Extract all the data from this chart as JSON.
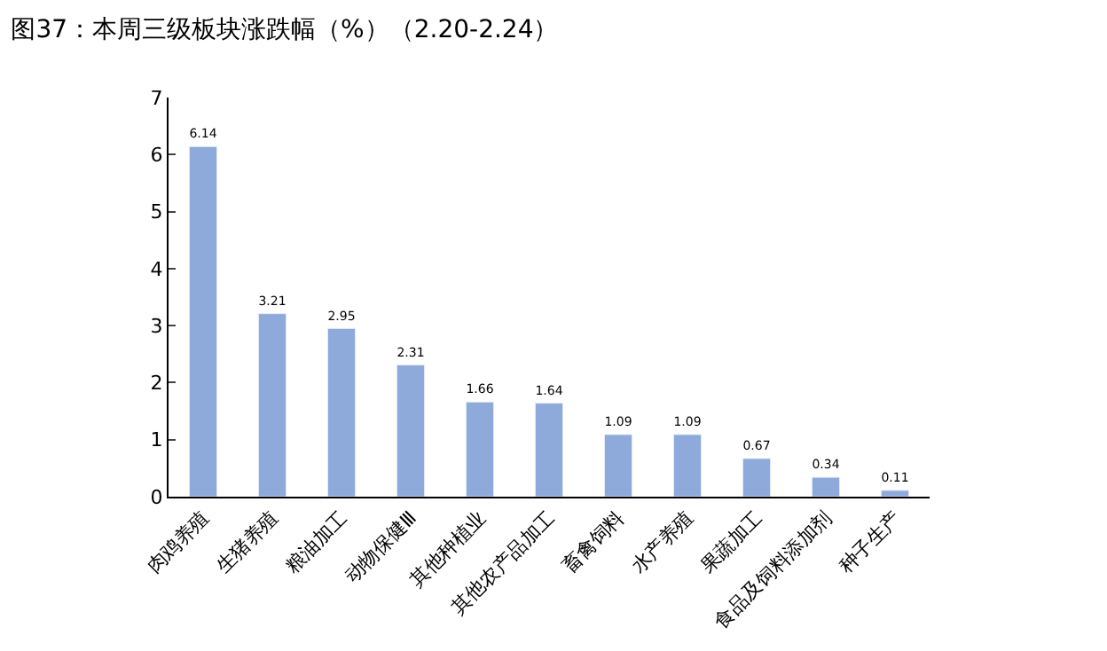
{
  "chart_data": {
    "type": "bar",
    "title": "图37：本周三级板块涨跌幅（%）（2.20-2.24）",
    "categories": [
      "肉鸡养殖",
      "生猪养殖",
      "粮油加工",
      "动物保健Ⅲ",
      "其他种植业",
      "其他农产品加工",
      "畜禽饲料",
      "水产养殖",
      "果蔬加工",
      "食品及饲料添加剂",
      "种子生产"
    ],
    "values": [
      6.14,
      3.21,
      2.95,
      2.31,
      1.66,
      1.64,
      1.09,
      1.09,
      0.67,
      0.34,
      0.11
    ],
    "color": "#8eaadb",
    "ylim": [
      0,
      7
    ],
    "yticks": [
      0,
      1,
      2,
      3,
      4,
      5,
      6,
      7
    ],
    "data_labels": true
  }
}
